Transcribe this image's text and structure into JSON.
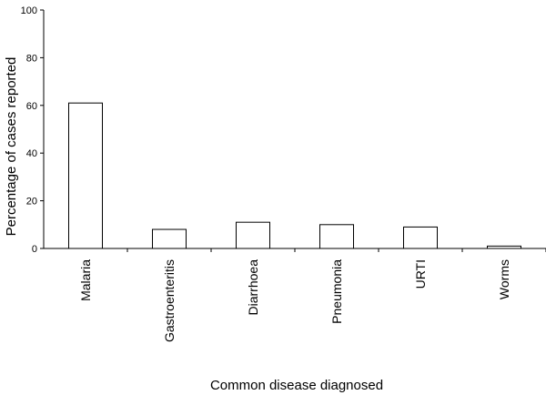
{
  "chart_data": {
    "type": "bar",
    "title": "",
    "xlabel": "Common disease diagnosed",
    "ylabel": "Percentage of cases reported",
    "ylim": [
      0,
      100
    ],
    "yticks": [
      0,
      20,
      40,
      60,
      80,
      100
    ],
    "grid": false,
    "categories": [
      "Malaria",
      "Gastroenteritis",
      "Diarrhoea",
      "Pneumonia",
      "URTI",
      "Worms"
    ],
    "values": [
      61,
      8,
      11,
      10,
      9,
      1
    ],
    "colors": {
      "bar_fill": "#ffffff",
      "bar_stroke": "#000000",
      "axis": "#000000"
    }
  }
}
